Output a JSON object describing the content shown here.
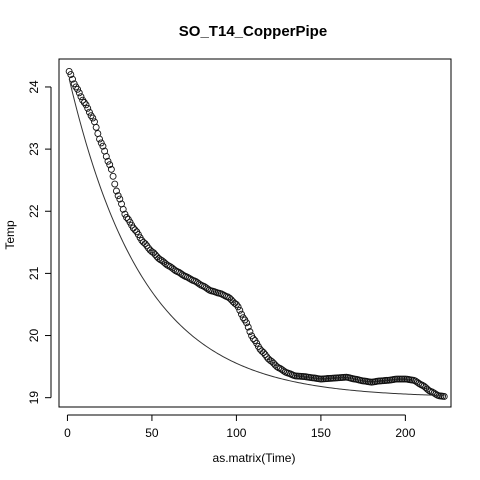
{
  "chart_data": {
    "type": "scatter",
    "title": "SO_T14_CopperPipe",
    "xlabel": "as.matrix(Time)",
    "ylabel": "Temp",
    "xlim": [
      -5,
      227
    ],
    "ylim": [
      18.85,
      24.45
    ],
    "x_ticks": [
      0,
      50,
      100,
      150,
      200
    ],
    "y_ticks": [
      19,
      20,
      21,
      22,
      23,
      24
    ],
    "grid": false,
    "legend": "none",
    "point_style": "open-circle",
    "observed_profile": [
      [
        1,
        24.25
      ],
      [
        5,
        24.0
      ],
      [
        10,
        23.75
      ],
      [
        15,
        23.5
      ],
      [
        20,
        23.1
      ],
      [
        25,
        22.75
      ],
      [
        30,
        22.25
      ],
      [
        35,
        21.9
      ],
      [
        40,
        21.7
      ],
      [
        45,
        21.5
      ],
      [
        50,
        21.35
      ],
      [
        55,
        21.22
      ],
      [
        60,
        21.12
      ],
      [
        65,
        21.03
      ],
      [
        70,
        20.95
      ],
      [
        75,
        20.88
      ],
      [
        80,
        20.8
      ],
      [
        85,
        20.72
      ],
      [
        90,
        20.68
      ],
      [
        95,
        20.62
      ],
      [
        100,
        20.5
      ],
      [
        105,
        20.25
      ],
      [
        110,
        19.95
      ],
      [
        115,
        19.75
      ],
      [
        120,
        19.6
      ],
      [
        125,
        19.48
      ],
      [
        130,
        19.4
      ],
      [
        135,
        19.35
      ],
      [
        140,
        19.34
      ],
      [
        145,
        19.32
      ],
      [
        150,
        19.3
      ],
      [
        155,
        19.31
      ],
      [
        160,
        19.32
      ],
      [
        165,
        19.33
      ],
      [
        170,
        19.3
      ],
      [
        175,
        19.27
      ],
      [
        180,
        19.25
      ],
      [
        185,
        19.27
      ],
      [
        190,
        19.28
      ],
      [
        195,
        19.3
      ],
      [
        200,
        19.3
      ],
      [
        205,
        19.28
      ],
      [
        210,
        19.2
      ],
      [
        215,
        19.1
      ],
      [
        220,
        19.03
      ],
      [
        223,
        19.02
      ]
    ],
    "point_count": 223,
    "fit_line": {
      "x_start": 1,
      "x_end": 223,
      "model": "exponential decay",
      "asymptote": 19.0,
      "amplitude": 5.25,
      "rate": 0.0225
    },
    "colors": {
      "points": "#111111",
      "line": "#333333",
      "frame": "#000000"
    }
  }
}
